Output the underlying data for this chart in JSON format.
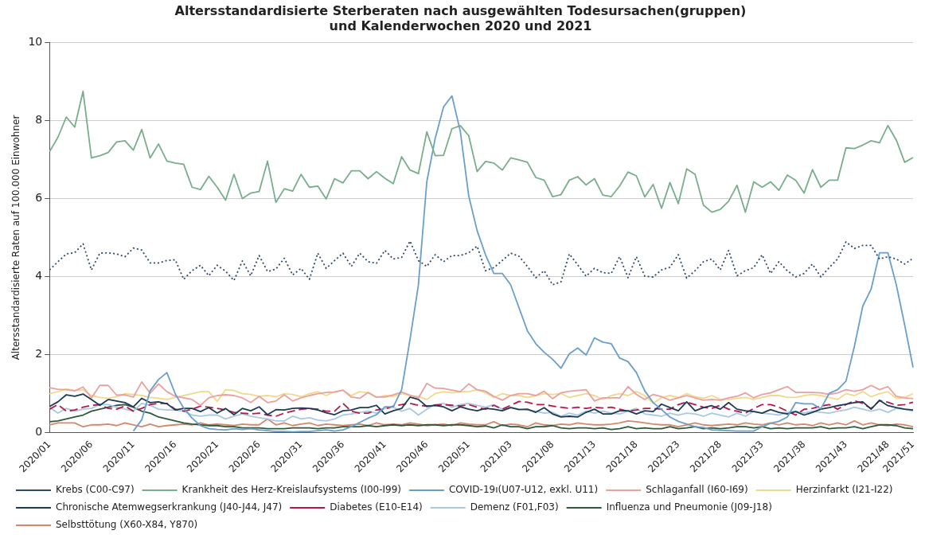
{
  "chart_data": {
    "type": "line",
    "title": "Altersstandardisierte Sterberaten nach ausgewählten Todesursachen(gruppen)\nund Kalenderwochen 2020 und 2021",
    "ylabel": "Altersstandardisierte Raten auf 100.000 Einwohner",
    "categories": [
      "2020/01",
      null,
      null,
      null,
      null,
      "2020/06",
      null,
      null,
      null,
      null,
      "2020/11",
      null,
      null,
      null,
      null,
      "2020/16",
      null,
      null,
      null,
      null,
      "2020/21",
      null,
      null,
      null,
      null,
      "2020/26",
      null,
      null,
      null,
      null,
      "2020/31",
      null,
      null,
      null,
      null,
      "2020/36",
      null,
      null,
      null,
      null,
      "2020/41",
      null,
      null,
      null,
      null,
      "2020/46",
      null,
      null,
      null,
      null,
      "2020/51",
      null,
      null,
      null,
      null,
      "2021/03",
      null,
      null,
      null,
      null,
      "2021/08",
      null,
      null,
      null,
      null,
      "2021/13",
      null,
      null,
      null,
      null,
      "2021/18",
      null,
      null,
      null,
      null,
      "2021/23",
      null,
      null,
      null,
      null,
      "2021/28",
      null,
      null,
      null,
      null,
      "2021/33",
      null,
      null,
      null,
      null,
      "2021/38",
      null,
      null,
      null,
      null,
      "2021/43",
      null,
      null,
      null,
      null,
      "2021/48",
      null,
      null,
      "2021/51"
    ],
    "ylim": [
      0,
      10
    ],
    "yticks": [
      0,
      2,
      4,
      6,
      8,
      10
    ],
    "grid": "y",
    "legend": "bottom",
    "marker": "none",
    "series": [
      {
        "name": "Krebs (C00-C97)",
        "color": "#2e4a6b",
        "line_style": "dotted",
        "values": [
          4.17,
          4.38,
          4.58,
          4.61,
          4.84,
          4.17,
          4.6,
          4.61,
          4.58,
          4.51,
          4.73,
          4.68,
          4.35,
          4.35,
          4.41,
          4.43,
          3.93,
          4.15,
          4.29,
          4.02,
          4.29,
          4.14,
          3.9,
          4.4,
          4.02,
          4.54,
          4.13,
          4.19,
          4.47,
          4.04,
          4.21,
          3.93,
          4.6,
          4.21,
          4.41,
          4.6,
          4.26,
          4.6,
          4.38,
          4.34,
          4.67,
          4.45,
          4.49,
          4.91,
          4.41,
          4.26,
          4.56,
          4.38,
          4.54,
          4.54,
          4.61,
          4.78,
          4.15,
          4.23,
          4.41,
          4.6,
          4.52,
          4.26,
          3.97,
          4.15,
          3.79,
          3.86,
          4.58,
          4.3,
          4.01,
          4.21,
          4.1,
          4.08,
          4.51,
          3.97,
          4.51,
          4.01,
          3.99,
          4.17,
          4.24,
          4.56,
          3.96,
          4.15,
          4.38,
          4.45,
          4.17,
          4.67,
          4.02,
          4.15,
          4.23,
          4.56,
          4.08,
          4.38,
          4.15,
          3.99,
          4.08,
          4.32,
          3.99,
          4.23,
          4.45,
          4.89,
          4.72,
          4.8,
          4.8,
          4.45,
          4.51,
          4.45,
          4.32,
          4.47
        ]
      },
      {
        "name": "Krankheit des Herz-Kreislaufsystems (I00-I99)",
        "color": "#78ae8a",
        "line_style": "solid",
        "values": [
          7.2,
          7.57,
          8.09,
          7.83,
          8.75,
          7.04,
          7.1,
          7.18,
          7.45,
          7.48,
          7.24,
          7.77,
          7.04,
          7.4,
          6.96,
          6.91,
          6.88,
          6.29,
          6.23,
          6.57,
          6.29,
          5.96,
          6.62,
          6.0,
          6.14,
          6.18,
          6.96,
          5.9,
          6.25,
          6.19,
          6.62,
          6.29,
          6.32,
          5.99,
          6.51,
          6.4,
          6.71,
          6.71,
          6.51,
          6.69,
          6.52,
          6.38,
          7.07,
          6.73,
          6.64,
          7.71,
          7.1,
          7.11,
          7.79,
          7.87,
          7.61,
          6.69,
          6.95,
          6.91,
          6.73,
          7.04,
          6.99,
          6.93,
          6.54,
          6.47,
          6.05,
          6.1,
          6.47,
          6.56,
          6.35,
          6.51,
          6.09,
          6.05,
          6.32,
          6.68,
          6.58,
          6.04,
          6.36,
          5.75,
          6.41,
          5.87,
          6.76,
          6.62,
          5.83,
          5.65,
          5.72,
          5.93,
          6.34,
          5.65,
          6.43,
          6.29,
          6.43,
          6.21,
          6.6,
          6.47,
          6.14,
          6.74,
          6.29,
          6.47,
          6.47,
          7.3,
          7.28,
          7.37,
          7.48,
          7.43,
          7.87,
          7.5,
          6.93,
          7.05
        ]
      },
      {
        "name": "COVID-19ı(U07-U12, exkl. U11)",
        "color": "#6a9fcc",
        "line_style": "solid",
        "values": [
          null,
          null,
          null,
          null,
          null,
          null,
          null,
          null,
          null,
          null,
          0.04,
          0.33,
          1.07,
          1.36,
          1.54,
          0.99,
          0.63,
          0.37,
          0.18,
          0.1,
          0.08,
          0.07,
          0.1,
          0.08,
          0.1,
          0.07,
          0.05,
          0.03,
          0.03,
          0.02,
          0.03,
          0.03,
          0.05,
          0.07,
          0.04,
          0.07,
          0.15,
          0.26,
          0.37,
          0.46,
          0.66,
          0.66,
          1.1,
          2.39,
          3.79,
          6.43,
          7.54,
          8.35,
          8.63,
          7.72,
          6.07,
          5.18,
          4.56,
          4.08,
          4.08,
          3.79,
          3.2,
          2.61,
          2.28,
          2.06,
          1.88,
          1.65,
          2.02,
          2.17,
          1.99,
          2.43,
          2.32,
          2.28,
          1.91,
          1.82,
          1.54,
          1.07,
          0.77,
          0.59,
          0.4,
          0.29,
          0.22,
          0.15,
          0.13,
          0.07,
          0.06,
          0.05,
          0.04,
          0.04,
          0.04,
          0.15,
          0.24,
          0.29,
          0.4,
          0.77,
          0.74,
          0.74,
          0.61,
          1.01,
          1.1,
          1.32,
          2.21,
          3.24,
          3.68,
          4.61,
          4.61,
          3.79,
          2.76,
          1.67
        ]
      },
      {
        "name": "Schlaganfall (I60-I69)",
        "color": "#eba0a0",
        "line_style": "solid",
        "values": [
          1.15,
          1.11,
          1.1,
          1.07,
          1.17,
          0.89,
          1.21,
          1.21,
          0.96,
          0.97,
          0.91,
          1.3,
          1.01,
          1.25,
          1.05,
          0.93,
          0.89,
          0.85,
          0.7,
          0.89,
          0.95,
          0.97,
          0.95,
          0.89,
          0.77,
          0.93,
          0.77,
          0.81,
          0.97,
          0.81,
          0.89,
          0.95,
          1.0,
          1.03,
          1.04,
          1.09,
          0.91,
          0.88,
          1.03,
          0.91,
          0.91,
          0.97,
          1.04,
          0.96,
          0.89,
          1.26,
          1.14,
          1.13,
          1.09,
          1.05,
          1.25,
          1.1,
          1.06,
          0.93,
          0.83,
          0.95,
          1.0,
          1.0,
          0.95,
          1.06,
          0.87,
          1.02,
          1.06,
          1.08,
          1.1,
          0.81,
          0.89,
          0.89,
          0.89,
          1.18,
          0.98,
          0.85,
          0.98,
          0.92,
          0.83,
          0.89,
          0.95,
          0.89,
          0.83,
          0.85,
          0.83,
          0.89,
          0.93,
          1.02,
          0.89,
          0.98,
          1.02,
          1.1,
          1.18,
          1.03,
          1.03,
          1.03,
          1.02,
          0.98,
          1.02,
          1.1,
          1.06,
          1.1,
          1.21,
          1.1,
          1.18,
          0.93,
          0.89,
          0.87
        ]
      },
      {
        "name": "Herzinfarkt (I21-I22)",
        "color": "#f2d98a",
        "line_style": "solid",
        "values": [
          1.0,
          1.05,
          1.12,
          1.08,
          1.1,
          0.95,
          0.9,
          0.88,
          0.92,
          1.0,
          0.98,
          0.95,
          0.9,
          0.88,
          0.85,
          0.9,
          0.95,
          1.0,
          1.05,
          1.05,
          0.8,
          1.1,
          1.08,
          1.0,
          0.98,
          0.93,
          0.95,
          0.92,
          1.0,
          0.98,
          0.92,
          1.0,
          1.05,
          0.95,
          1.05,
          1.08,
          0.95,
          1.05,
          1.02,
          0.9,
          0.95,
          0.93,
          1.0,
          0.95,
          0.92,
          0.85,
          1.0,
          1.05,
          1.02,
          1.05,
          1.05,
          1.1,
          1.02,
          0.9,
          1.0,
          0.95,
          0.95,
          0.9,
          0.95,
          1.0,
          0.98,
          1.0,
          0.9,
          0.95,
          1.0,
          0.95,
          0.85,
          0.95,
          1.0,
          0.95,
          1.05,
          0.95,
          0.75,
          0.9,
          0.95,
          0.9,
          1.0,
          0.92,
          0.88,
          0.95,
          0.85,
          0.85,
          0.88,
          0.9,
          0.85,
          0.9,
          0.95,
          0.95,
          0.9,
          0.9,
          0.95,
          0.98,
          0.95,
          0.9,
          0.85,
          1.0,
          0.95,
          1.05,
          0.92,
          1.0,
          1.05,
          0.88,
          0.9,
          1.0
        ]
      },
      {
        "name": "Chronische Atemwegserkrankung (J40-J44, J47)",
        "color": "#1d3b57",
        "line_style": "solid",
        "values": [
          0.67,
          0.79,
          0.97,
          0.93,
          0.99,
          0.85,
          0.7,
          0.85,
          0.81,
          0.77,
          0.66,
          0.88,
          0.77,
          0.79,
          0.74,
          0.58,
          0.62,
          0.62,
          0.54,
          0.64,
          0.5,
          0.62,
          0.46,
          0.62,
          0.56,
          0.66,
          0.46,
          0.59,
          0.58,
          0.62,
          0.63,
          0.62,
          0.58,
          0.51,
          0.46,
          0.56,
          0.58,
          0.64,
          0.64,
          0.7,
          0.48,
          0.56,
          0.62,
          0.91,
          0.85,
          0.67,
          0.7,
          0.66,
          0.56,
          0.66,
          0.6,
          0.56,
          0.62,
          0.6,
          0.56,
          0.64,
          0.59,
          0.6,
          0.52,
          0.64,
          0.48,
          0.4,
          0.42,
          0.4,
          0.52,
          0.6,
          0.48,
          0.48,
          0.56,
          0.56,
          0.48,
          0.56,
          0.54,
          0.73,
          0.64,
          0.56,
          0.79,
          0.56,
          0.64,
          0.69,
          0.6,
          0.77,
          0.6,
          0.56,
          0.54,
          0.5,
          0.59,
          0.52,
          0.48,
          0.54,
          0.45,
          0.52,
          0.6,
          0.64,
          0.69,
          0.73,
          0.77,
          0.79,
          0.6,
          0.83,
          0.69,
          0.64,
          0.6,
          0.58
        ]
      },
      {
        "name": "Diabetes (E10-E14)",
        "color": "#b5174f",
        "line_style": "dashed",
        "values": [
          0.6,
          0.72,
          0.55,
          0.58,
          0.65,
          0.7,
          0.72,
          0.62,
          0.6,
          0.68,
          0.55,
          0.62,
          0.72,
          0.75,
          0.75,
          0.6,
          0.55,
          0.6,
          0.68,
          0.65,
          0.62,
          0.58,
          0.52,
          0.5,
          0.48,
          0.5,
          0.45,
          0.42,
          0.5,
          0.55,
          0.6,
          0.62,
          0.6,
          0.55,
          0.55,
          0.75,
          0.55,
          0.5,
          0.5,
          0.58,
          0.6,
          0.68,
          0.72,
          0.75,
          0.7,
          0.68,
          0.7,
          0.72,
          0.7,
          0.68,
          0.72,
          0.65,
          0.6,
          0.7,
          0.6,
          0.7,
          0.8,
          0.78,
          0.72,
          0.72,
          0.68,
          0.65,
          0.62,
          0.65,
          0.62,
          0.65,
          0.63,
          0.65,
          0.6,
          0.55,
          0.58,
          0.62,
          0.62,
          0.6,
          0.6,
          0.72,
          0.78,
          0.72,
          0.65,
          0.62,
          0.7,
          0.6,
          0.55,
          0.5,
          0.62,
          0.72,
          0.72,
          0.65,
          0.55,
          0.45,
          0.6,
          0.62,
          0.68,
          0.72,
          0.6,
          0.72,
          0.82,
          0.75,
          0.62,
          0.82,
          0.78,
          0.7,
          0.72,
          0.78
        ]
      },
      {
        "name": "Demenz (F01,F03)",
        "color": "#a9c9e3",
        "line_style": "solid",
        "values": [
          0.65,
          0.5,
          0.62,
          0.55,
          0.6,
          0.62,
          0.72,
          0.72,
          0.65,
          0.6,
          0.55,
          0.75,
          0.7,
          0.6,
          0.58,
          0.58,
          0.55,
          0.45,
          0.42,
          0.45,
          0.45,
          0.35,
          0.42,
          0.48,
          0.42,
          0.38,
          0.35,
          0.3,
          0.3,
          0.42,
          0.35,
          0.38,
          0.32,
          0.3,
          0.35,
          0.45,
          0.48,
          0.52,
          0.55,
          0.5,
          0.62,
          0.65,
          0.55,
          0.62,
          0.45,
          0.6,
          0.72,
          0.75,
          0.65,
          0.72,
          0.75,
          0.7,
          0.65,
          0.72,
          0.6,
          0.65,
          0.6,
          0.58,
          0.55,
          0.5,
          0.52,
          0.42,
          0.5,
          0.45,
          0.55,
          0.5,
          0.55,
          0.5,
          0.48,
          0.55,
          0.62,
          0.48,
          0.45,
          0.42,
          0.5,
          0.45,
          0.5,
          0.48,
          0.42,
          0.5,
          0.45,
          0.4,
          0.5,
          0.42,
          0.55,
          0.5,
          0.48,
          0.45,
          0.52,
          0.55,
          0.5,
          0.55,
          0.52,
          0.5,
          0.55,
          0.58,
          0.65,
          0.6,
          0.55,
          0.6,
          0.52,
          0.62,
          0.6,
          0.55
        ]
      },
      {
        "name": "Influenza und Pneumonie (J09-J18)",
        "color": "#2d5a3d",
        "line_style": "solid",
        "values": [
          0.28,
          0.3,
          0.35,
          0.4,
          0.45,
          0.55,
          0.6,
          0.65,
          0.7,
          0.72,
          0.65,
          0.55,
          0.5,
          0.4,
          0.35,
          0.3,
          0.25,
          0.22,
          0.2,
          0.18,
          0.18,
          0.15,
          0.15,
          0.12,
          0.12,
          0.12,
          0.1,
          0.1,
          0.1,
          0.12,
          0.12,
          0.12,
          0.1,
          0.12,
          0.12,
          0.15,
          0.15,
          0.15,
          0.18,
          0.15,
          0.18,
          0.2,
          0.18,
          0.2,
          0.18,
          0.2,
          0.2,
          0.18,
          0.2,
          0.2,
          0.18,
          0.15,
          0.17,
          0.12,
          0.2,
          0.15,
          0.15,
          0.1,
          0.15,
          0.15,
          0.18,
          0.12,
          0.1,
          0.12,
          0.12,
          0.1,
          0.12,
          0.08,
          0.1,
          0.15,
          0.1,
          0.12,
          0.1,
          0.1,
          0.15,
          0.1,
          0.12,
          0.15,
          0.1,
          0.12,
          0.1,
          0.12,
          0.15,
          0.15,
          0.12,
          0.15,
          0.1,
          0.12,
          0.1,
          0.12,
          0.12,
          0.12,
          0.15,
          0.1,
          0.12,
          0.12,
          0.15,
          0.1,
          0.15,
          0.2,
          0.2,
          0.18,
          0.12,
          0.1
        ]
      },
      {
        "name": "Selbsttötung (X60-X84, Y870)",
        "color": "#d4896a",
        "line_style": "solid",
        "values": [
          0.2,
          0.25,
          0.25,
          0.25,
          0.15,
          0.2,
          0.2,
          0.22,
          0.18,
          0.25,
          0.2,
          0.15,
          0.22,
          0.15,
          0.18,
          0.2,
          0.22,
          0.2,
          0.25,
          0.2,
          0.22,
          0.2,
          0.18,
          0.22,
          0.2,
          0.2,
          0.35,
          0.2,
          0.25,
          0.18,
          0.22,
          0.25,
          0.18,
          0.22,
          0.2,
          0.18,
          0.2,
          0.22,
          0.18,
          0.25,
          0.2,
          0.22,
          0.2,
          0.25,
          0.22,
          0.18,
          0.2,
          0.22,
          0.18,
          0.25,
          0.22,
          0.2,
          0.2,
          0.28,
          0.18,
          0.22,
          0.2,
          0.15,
          0.25,
          0.2,
          0.18,
          0.22,
          0.2,
          0.25,
          0.22,
          0.2,
          0.2,
          0.22,
          0.25,
          0.3,
          0.28,
          0.25,
          0.22,
          0.2,
          0.2,
          0.15,
          0.2,
          0.25,
          0.2,
          0.18,
          0.2,
          0.22,
          0.2,
          0.25,
          0.22,
          0.2,
          0.25,
          0.2,
          0.25,
          0.2,
          0.22,
          0.18,
          0.25,
          0.2,
          0.25,
          0.2,
          0.3,
          0.2,
          0.25,
          0.2,
          0.18,
          0.22,
          0.2,
          0.15
        ]
      }
    ]
  }
}
